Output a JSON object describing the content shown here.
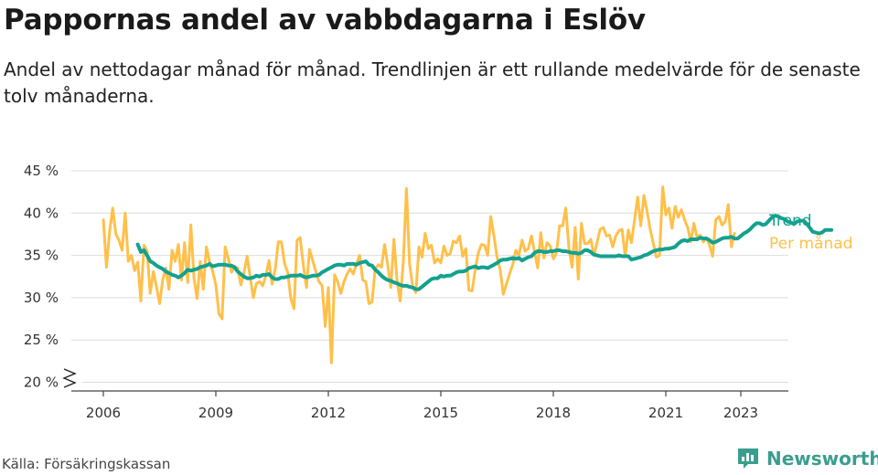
{
  "title": "Pappornas andel av vabbdagarna i Eslöv",
  "subtitle": "Andel av nettodagar månad för månad. Trendlinjen är ett rullande medelvärde för de senaste tolv månaderna.",
  "source": "Källa: Försäkringskassan",
  "brand": "Newsworthy",
  "colors": {
    "trend": "#13a18f",
    "monthly": "#ffc04a",
    "grid": "#dcdcdc",
    "axis": "#444444",
    "brand": "#3a9e8f"
  },
  "chart_data": {
    "type": "line",
    "xlabel": "",
    "ylabel": "",
    "x_ticks": [
      "2006",
      "2009",
      "2012",
      "2015",
      "2018",
      "2021",
      "2023"
    ],
    "y_ticks": [
      "20 %",
      "25 %",
      "30 %",
      "35 %",
      "40 %",
      "45 %"
    ],
    "ylim": [
      20,
      45
    ],
    "xlim": [
      2005.5,
      2024.2
    ],
    "axis_break": true,
    "grid": true,
    "legend_position": "right of line ends",
    "series": [
      {
        "name": "Per månad",
        "color": "#ffc04a",
        "x_start": 2006.0,
        "step": 0.08333,
        "values": [
          39.2,
          33.6,
          37.8,
          40.6,
          37.5,
          36.8,
          35.6,
          40.0,
          34.3,
          35.0,
          33.2,
          34.2,
          29.6,
          36.2,
          35.5,
          30.5,
          33.1,
          31.3,
          29.3,
          32.1,
          33.5,
          31.0,
          35.6,
          34.3,
          36.3,
          32.1,
          36.5,
          31.8,
          38.6,
          32.3,
          29.9,
          34.3,
          31.0,
          36.0,
          34.2,
          33.1,
          31.5,
          28.1,
          27.5,
          36.0,
          34.6,
          33.0,
          33.7,
          33.5,
          31.5,
          32.9,
          34.9,
          32.4,
          30.0,
          31.7,
          31.9,
          31.4,
          32.6,
          34.4,
          31.6,
          33.3,
          36.6,
          36.6,
          34.0,
          33.0,
          29.9,
          28.7,
          36.8,
          37.1,
          33.8,
          31.2,
          35.7,
          34.4,
          33.1,
          31.9,
          31.4,
          26.6,
          31.2,
          22.3,
          32.7,
          31.9,
          30.5,
          31.9,
          32.8,
          33.4,
          32.8,
          34.0,
          35.0,
          32.1,
          31.9,
          29.3,
          29.5,
          33.4,
          33.9,
          33.6,
          36.3,
          33.9,
          31.2,
          36.9,
          31.9,
          29.6,
          34.3,
          42.9,
          34.0,
          31.4,
          30.6,
          36.0,
          34.8,
          37.6,
          35.8,
          36.2,
          34.1,
          34.6,
          34.1,
          36.1,
          35.0,
          35.2,
          36.7,
          36.5,
          37.3,
          34.9,
          35.8,
          30.9,
          30.8,
          33.3,
          35.3,
          36.3,
          36.2,
          35.0,
          39.6,
          37.3,
          34.8,
          33.3,
          30.4,
          31.6,
          32.8,
          33.9,
          35.6,
          35.0,
          36.8,
          35.5,
          35.8,
          37.3,
          35.4,
          33.5,
          37.7,
          34.7,
          36.5,
          36.1,
          34.6,
          35.3,
          38.5,
          38.5,
          40.6,
          35.8,
          33.6,
          38.3,
          32.2,
          38.8,
          36.4,
          36.4,
          36.9,
          35.0,
          36.5,
          38.1,
          38.3,
          37.3,
          37.4,
          36.0,
          37.3,
          37.9,
          38.1,
          34.9,
          38.0,
          36.5,
          39.2,
          41.9,
          38.5,
          42.1,
          40.2,
          38.1,
          36.4,
          34.8,
          35.0,
          43.1,
          39.8,
          40.6,
          38.2,
          40.8,
          39.5,
          40.4,
          39.2,
          38.3,
          36.6,
          38.8,
          37.2,
          37.4,
          36.6,
          37.1,
          36.2,
          34.9,
          39.2,
          39.6,
          38.6,
          39.0,
          41.0,
          36.0,
          37.6
        ]
      },
      {
        "name": "Trend",
        "color": "#13a18f",
        "x_start": 2006.917,
        "step": 0.08333,
        "values": [
          36.3,
          35.4,
          35.6,
          35.0,
          34.3,
          34.1,
          33.8,
          33.6,
          33.4,
          33.1,
          32.9,
          32.7,
          32.6,
          32.4,
          32.6,
          32.9,
          33.3,
          33.2,
          33.3,
          33.4,
          33.6,
          33.7,
          33.8,
          34.0,
          33.7,
          33.8,
          33.9,
          33.9,
          33.9,
          33.8,
          33.8,
          33.6,
          33.1,
          32.8,
          32.5,
          32.3,
          32.3,
          32.4,
          32.6,
          32.5,
          32.7,
          32.7,
          32.8,
          32.4,
          32.2,
          32.2,
          32.4,
          32.4,
          32.5,
          32.6,
          32.6,
          32.6,
          32.7,
          32.5,
          32.4,
          32.5,
          32.6,
          32.6,
          32.7,
          33.0,
          33.2,
          33.4,
          33.6,
          33.8,
          33.9,
          33.9,
          33.8,
          34.0,
          34.0,
          34.0,
          33.9,
          34.1,
          34.2,
          34.3,
          33.9,
          33.8,
          33.3,
          33.0,
          32.6,
          32.3,
          32.1,
          32.0,
          31.8,
          31.7,
          31.5,
          31.4,
          31.4,
          31.3,
          31.2,
          31.0,
          31.0,
          31.3,
          31.6,
          31.9,
          32.2,
          32.3,
          32.3,
          32.6,
          32.5,
          32.6,
          32.6,
          32.8,
          33.0,
          33.1,
          33.1,
          33.2,
          33.5,
          33.6,
          33.7,
          33.5,
          33.6,
          33.6,
          33.5,
          33.7,
          33.9,
          34.1,
          34.4,
          34.5,
          34.5,
          34.6,
          34.7,
          34.6,
          34.7,
          34.4,
          34.6,
          34.8,
          34.9,
          35.3,
          35.5,
          35.5,
          35.4,
          35.4,
          35.5,
          35.5,
          35.6,
          35.6,
          35.5,
          35.5,
          35.4,
          35.3,
          35.3,
          35.2,
          35.3,
          35.6,
          35.6,
          35.4,
          35.1,
          35.0,
          34.9,
          34.9,
          34.9,
          34.9,
          34.9,
          34.9,
          35.0,
          34.9,
          34.9,
          34.9,
          34.5,
          34.6,
          34.7,
          34.8,
          35.0,
          35.1,
          35.3,
          35.5,
          35.6,
          35.7,
          35.7,
          35.8,
          35.8,
          35.9,
          36.0,
          36.4,
          36.7,
          36.8,
          36.7,
          36.9,
          36.9,
          36.9,
          37.1,
          37.0,
          37.0,
          36.8,
          36.5,
          36.6,
          36.8,
          37.0,
          37.1,
          37.1,
          37.2,
          37.0,
          37.0,
          37.3,
          37.6,
          37.8,
          38.1,
          38.5,
          38.8,
          38.8,
          38.6,
          38.7,
          39.1,
          39.5,
          39.7,
          39.6,
          39.4,
          39.3,
          39.0,
          38.9,
          38.7,
          39.0,
          39.1,
          39.1,
          38.8,
          38.3,
          37.8,
          37.7,
          37.6,
          37.7,
          38.0,
          38.0,
          38.0
        ]
      }
    ]
  }
}
